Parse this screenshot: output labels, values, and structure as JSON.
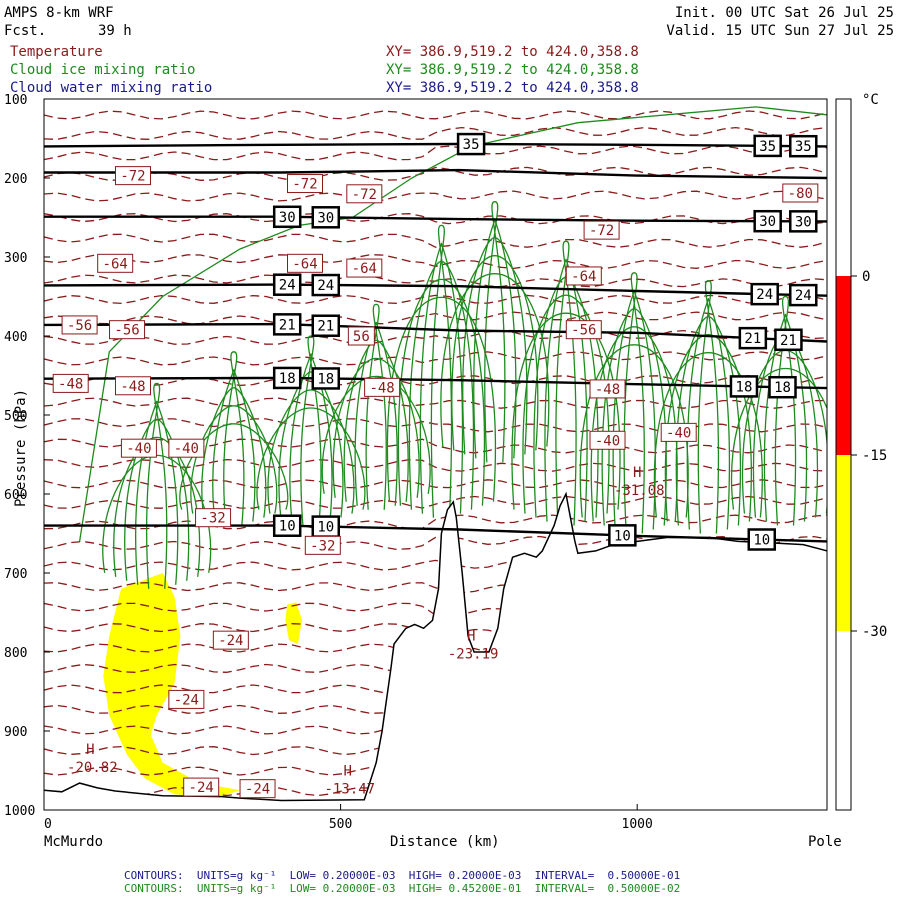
{
  "header": {
    "model": "AMPS 8-km WRF",
    "fcst_label": "Fcst.",
    "fcst_value": "39 h",
    "init": "Init. 00 UTC Sat 26 Jul 25",
    "valid": "Valid. 15 UTC Sun 27 Jul 25"
  },
  "fields": [
    {
      "name": "Temperature",
      "xy": "XY= 386.9,519.2 to 424.0,358.8",
      "color": "#8b1a1a"
    },
    {
      "name": "Cloud ice mixing ratio",
      "xy": "XY= 386.9,519.2 to 424.0,358.8",
      "color": "#1e8b1e"
    },
    {
      "name": "Cloud water mixing ratio",
      "xy": "XY= 386.9,519.2 to 424.0,358.8",
      "color": "#1a1a8b"
    }
  ],
  "colorbar": {
    "unit": "°C",
    "ticks": [
      "0",
      "-15",
      "-30"
    ],
    "segments": [
      {
        "from": 0,
        "to": 0,
        "color": "#ffffff"
      },
      {
        "from": 0,
        "to": -15,
        "color": "#ff0000"
      },
      {
        "from": -15,
        "to": -30,
        "color": "#ffff00"
      },
      {
        "from": -30,
        "to": -30,
        "color": "#ffffff"
      }
    ]
  },
  "footer": {
    "line1": "CONTOURS:  UNITS=g kg⁻¹  LOW= 0.20000E-03  HIGH= 0.20000E-03  INTERVAL=  0.50000E-01",
    "line2": "CONTOURS:  UNITS=g kg⁻¹  LOW= 0.20000E-03  HIGH= 0.45200E-01  INTERVAL=  0.50000E-02",
    "line1_color": "#1a1a8b",
    "line2_color": "#1e8b1e"
  },
  "chart_data": {
    "type": "cross-section",
    "xlabel": "Distance (km)",
    "ylabel": "Pressure (hPa)",
    "xlim": [
      0,
      1320
    ],
    "ylim": [
      1000,
      100
    ],
    "xticks": [
      0,
      500,
      1000
    ],
    "yticks": [
      100,
      200,
      300,
      400,
      500,
      600,
      700,
      800,
      900,
      1000
    ],
    "x_start_label": "McMurdo",
    "x_end_label": "Pole",
    "terrain": [
      [
        0,
        975
      ],
      [
        30,
        977
      ],
      [
        60,
        966
      ],
      [
        90,
        972
      ],
      [
        120,
        976
      ],
      [
        200,
        982
      ],
      [
        300,
        983
      ],
      [
        330,
        985
      ],
      [
        400,
        988
      ],
      [
        540,
        987
      ],
      [
        560,
        940
      ],
      [
        570,
        900
      ],
      [
        585,
        820
      ],
      [
        590,
        790
      ],
      [
        610,
        770
      ],
      [
        625,
        765
      ],
      [
        640,
        770
      ],
      [
        655,
        760
      ],
      [
        665,
        720
      ],
      [
        670,
        650
      ],
      [
        680,
        620
      ],
      [
        690,
        610
      ],
      [
        695,
        630
      ],
      [
        705,
        700
      ],
      [
        715,
        780
      ],
      [
        725,
        800
      ],
      [
        750,
        800
      ],
      [
        765,
        770
      ],
      [
        775,
        720
      ],
      [
        790,
        680
      ],
      [
        810,
        675
      ],
      [
        830,
        680
      ],
      [
        840,
        672
      ],
      [
        860,
        640
      ],
      [
        870,
        615
      ],
      [
        880,
        600
      ],
      [
        895,
        660
      ],
      [
        900,
        675
      ],
      [
        930,
        672
      ],
      [
        960,
        664
      ],
      [
        1000,
        660
      ],
      [
        1050,
        655
      ],
      [
        1120,
        655
      ],
      [
        1170,
        660
      ],
      [
        1230,
        662
      ],
      [
        1280,
        664
      ],
      [
        1310,
        670
      ],
      [
        1320,
        672
      ]
    ],
    "isentropes": [
      {
        "label": "35",
        "points": [
          [
            0,
            160
          ],
          [
            400,
            158
          ],
          [
            700,
            157
          ],
          [
            1000,
            158
          ],
          [
            1320,
            160
          ]
        ],
        "label_x": [
          720,
          1220,
          1280
        ]
      },
      {
        "label": "35",
        "points": [
          [
            0,
            193
          ],
          [
            400,
            193
          ],
          [
            700,
            190
          ],
          [
            1000,
            197
          ],
          [
            1320,
            200
          ]
        ],
        "label_x": []
      },
      {
        "label": "30",
        "points": [
          [
            0,
            249
          ],
          [
            400,
            249
          ],
          [
            700,
            252
          ],
          [
            1000,
            254
          ],
          [
            1320,
            255
          ]
        ],
        "label_x": [
          410,
          475,
          1220,
          1280
        ]
      },
      {
        "label": "24",
        "points": [
          [
            0,
            336
          ],
          [
            400,
            335
          ],
          [
            700,
            337
          ],
          [
            1000,
            343
          ],
          [
            1320,
            349
          ]
        ],
        "label_x": [
          410,
          475,
          1215,
          1280
        ]
      },
      {
        "label": "21",
        "points": [
          [
            0,
            386
          ],
          [
            400,
            385
          ],
          [
            700,
            393
          ],
          [
            1000,
            396
          ],
          [
            1320,
            407
          ]
        ],
        "label_x": [
          410,
          475,
          1195,
          1255
        ]
      },
      {
        "label": "18",
        "points": [
          [
            0,
            454
          ],
          [
            400,
            453
          ],
          [
            700,
            456
          ],
          [
            1000,
            461
          ],
          [
            1320,
            466
          ]
        ],
        "label_x": [
          410,
          475,
          1180,
          1245
        ]
      },
      {
        "label": "10",
        "points": [
          [
            0,
            640
          ],
          [
            400,
            640
          ],
          [
            700,
            645
          ],
          [
            1000,
            653
          ],
          [
            1320,
            660
          ]
        ],
        "label_x": [
          410,
          475,
          975,
          1210
        ]
      }
    ],
    "temp_labels": [
      {
        "text": "-72",
        "x": 150,
        "p": 197
      },
      {
        "text": "-72",
        "x": 440,
        "p": 207
      },
      {
        "text": "-72",
        "x": 540,
        "p": 220
      },
      {
        "text": "-72",
        "x": 940,
        "p": 266
      },
      {
        "text": "-80",
        "x": 1275,
        "p": 219
      },
      {
        "text": "-64",
        "x": 120,
        "p": 308
      },
      {
        "text": "-64",
        "x": 440,
        "p": 308
      },
      {
        "text": "-64",
        "x": 540,
        "p": 314
      },
      {
        "text": "-64",
        "x": 910,
        "p": 324
      },
      {
        "text": "-56",
        "x": 60,
        "p": 386
      },
      {
        "text": "-56",
        "x": 140,
        "p": 392
      },
      {
        "text": "56",
        "x": 535,
        "p": 400
      },
      {
        "text": "-56",
        "x": 910,
        "p": 392
      },
      {
        "text": "-48",
        "x": 45,
        "p": 460
      },
      {
        "text": "-48",
        "x": 150,
        "p": 463
      },
      {
        "text": "-48",
        "x": 570,
        "p": 465
      },
      {
        "text": "-48",
        "x": 950,
        "p": 467
      },
      {
        "text": "-40",
        "x": 160,
        "p": 542
      },
      {
        "text": "-40",
        "x": 240,
        "p": 542
      },
      {
        "text": "-40",
        "x": 950,
        "p": 532
      },
      {
        "text": "-40",
        "x": 1070,
        "p": 522
      },
      {
        "text": "-32",
        "x": 285,
        "p": 630
      },
      {
        "text": "-32",
        "x": 470,
        "p": 665
      },
      {
        "text": "-24",
        "x": 315,
        "p": 785
      },
      {
        "text": "-24",
        "x": 240,
        "p": 860
      },
      {
        "text": "-24",
        "x": 265,
        "p": 971
      },
      {
        "text": "-24",
        "x": 360,
        "p": 973
      }
    ],
    "extrema": [
      {
        "symbol": "H",
        "value": "-20.82",
        "x": 68,
        "p": 937
      },
      {
        "symbol": "H",
        "value": "-23.19",
        "x": 710,
        "p": 793
      },
      {
        "symbol": "H",
        "value": "-13.47",
        "x": 502,
        "p": 964
      },
      {
        "symbol": "H",
        "value": "-31.08",
        "x": 990,
        "p": 586
      }
    ],
    "shaded_regions": [
      {
        "color": "#ffff00",
        "name": "-15 to -30 °C cloud",
        "points": [
          [
            130,
            720
          ],
          [
            200,
            700
          ],
          [
            220,
            730
          ],
          [
            230,
            780
          ],
          [
            220,
            840
          ],
          [
            190,
            880
          ],
          [
            180,
            905
          ],
          [
            200,
            940
          ],
          [
            260,
            965
          ],
          [
            330,
            975
          ],
          [
            290,
            985
          ],
          [
            220,
            980
          ],
          [
            170,
            960
          ],
          [
            140,
            930
          ],
          [
            110,
            880
          ],
          [
            100,
            830
          ],
          [
            110,
            780
          ]
        ]
      },
      {
        "color": "#ffff00",
        "name": "small cloud",
        "points": [
          [
            410,
            740
          ],
          [
            425,
            737
          ],
          [
            435,
            760
          ],
          [
            428,
            790
          ],
          [
            413,
            785
          ],
          [
            407,
            760
          ]
        ]
      }
    ],
    "ice_contour_centers": [
      {
        "x": 670,
        "p_top": 260,
        "p_bottom": 630
      },
      {
        "x": 760,
        "p_top": 230,
        "p_bottom": 560
      },
      {
        "x": 880,
        "p_top": 280,
        "p_bottom": 640
      },
      {
        "x": 995,
        "p_top": 320,
        "p_bottom": 650
      },
      {
        "x": 1120,
        "p_top": 330,
        "p_bottom": 650
      },
      {
        "x": 1250,
        "p_top": 350,
        "p_bottom": 640
      },
      {
        "x": 560,
        "p_top": 360,
        "p_bottom": 620
      },
      {
        "x": 450,
        "p_top": 400,
        "p_bottom": 640
      },
      {
        "x": 320,
        "p_top": 420,
        "p_bottom": 640
      },
      {
        "x": 190,
        "p_top": 460,
        "p_bottom": 720
      }
    ]
  }
}
